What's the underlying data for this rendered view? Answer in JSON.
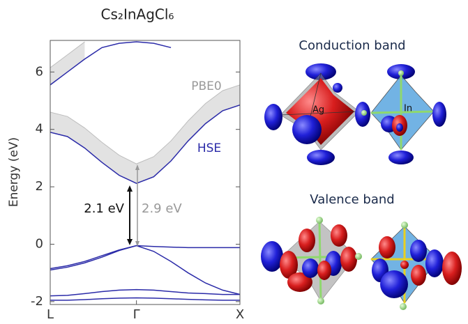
{
  "chart_data": {
    "type": "line",
    "title": "Cs₂InAgCl₆",
    "y_label": "Energy (eV)",
    "categories": [
      "L",
      null,
      null,
      null,
      null,
      "Γ",
      null,
      null,
      null,
      null,
      null,
      "X"
    ],
    "ylim": [
      -2.1,
      7.1
    ],
    "yticks": [
      -2,
      0,
      2,
      4,
      6
    ],
    "series": [
      {
        "color": "#bdbdbd",
        "values": [
          6.15,
          6.6,
          7.05,
          null,
          null,
          null,
          null,
          null,
          null,
          null,
          null,
          null
        ]
      },
      {
        "color": "#2a2aa8",
        "values": [
          5.55,
          6.0,
          6.45,
          6.85,
          7.0,
          7.05,
          7.0,
          6.85,
          null,
          null,
          null,
          null
        ]
      },
      {
        "name": "PBE0",
        "color": "#bdbdbd",
        "values": [
          4.6,
          4.45,
          4.05,
          3.55,
          3.1,
          2.8,
          3.05,
          3.6,
          4.3,
          4.9,
          5.35,
          5.55
        ]
      },
      {
        "name": "HSE",
        "color": "#2a2aa8",
        "values": [
          3.9,
          3.75,
          3.35,
          2.85,
          2.4,
          2.12,
          2.35,
          2.9,
          3.6,
          4.2,
          4.65,
          4.85
        ]
      },
      {
        "color": "#2a2aa8",
        "values": [
          -0.85,
          -0.75,
          -0.6,
          -0.4,
          -0.2,
          -0.05,
          -0.08,
          -0.1,
          -0.12,
          -0.12,
          -0.12,
          -0.12
        ]
      },
      {
        "color": "#2a2aa8",
        "values": [
          -0.9,
          -0.8,
          -0.65,
          -0.45,
          -0.22,
          -0.05,
          -0.25,
          -0.6,
          -1.0,
          -1.35,
          -1.6,
          -1.75
        ]
      },
      {
        "color": "#2a2aa8",
        "values": [
          -1.8,
          -1.78,
          -1.72,
          -1.65,
          -1.6,
          -1.58,
          -1.6,
          -1.65,
          -1.7,
          -1.72,
          -1.75,
          -1.75
        ]
      },
      {
        "color": "#2a2aa8",
        "values": [
          -1.95,
          -1.95,
          -1.93,
          -1.9,
          -1.88,
          -1.87,
          -1.88,
          -1.9,
          -1.92,
          -1.94,
          -1.95,
          -1.95
        ]
      }
    ],
    "annotations": [
      "2.1 eV",
      "2.9 eV"
    ]
  },
  "structures": [
    {
      "title": "Conduction band",
      "labels": [
        "Ag",
        "In"
      ]
    },
    {
      "title": "Valence band"
    }
  ]
}
